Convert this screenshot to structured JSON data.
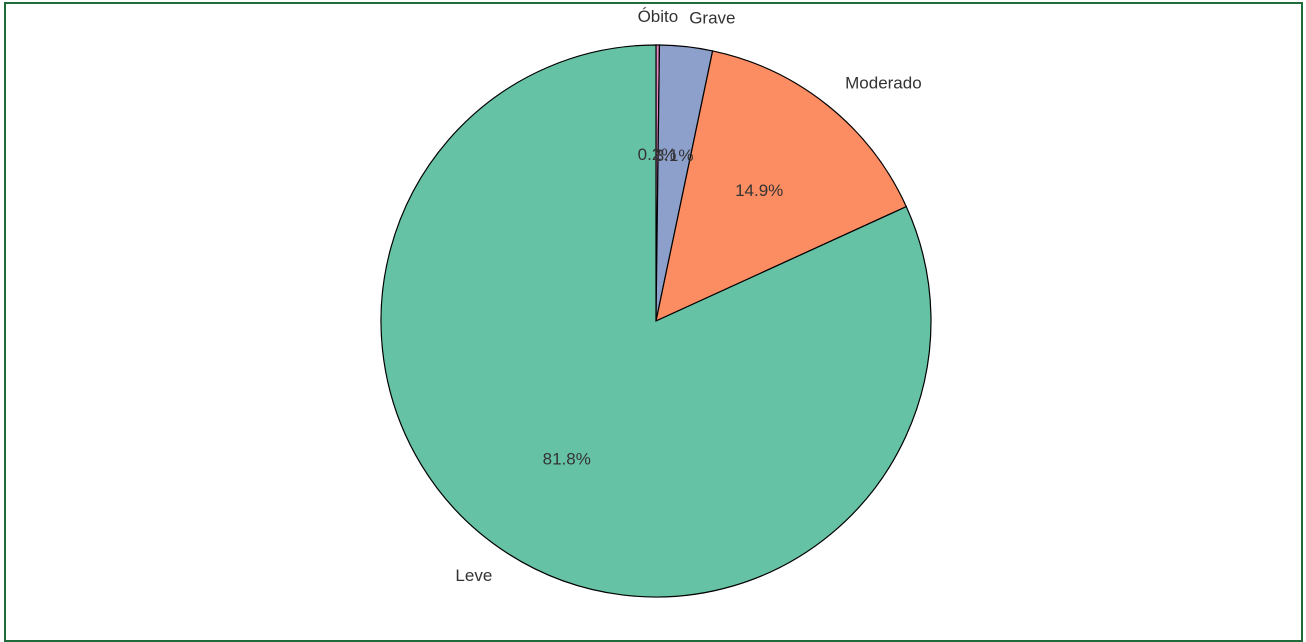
{
  "chart_data": {
    "type": "pie",
    "title": "",
    "start_angle_deg": 90,
    "direction": "clockwise",
    "slices": [
      {
        "label": "Óbito",
        "value": 0.2,
        "pct_label": "0.2%",
        "color": "#e78ac3"
      },
      {
        "label": "Grave",
        "value": 3.1,
        "pct_label": "3.1%",
        "color": "#8da0cb"
      },
      {
        "label": "Moderado",
        "value": 14.9,
        "pct_label": "14.9%",
        "color": "#fc8d62"
      },
      {
        "label": "Leve",
        "value": 81.8,
        "pct_label": "81.8%",
        "color": "#66c2a5"
      }
    ],
    "edge_color": "#000000"
  },
  "colors": {
    "frame_border": "#1f6b3a",
    "text": "#333333"
  }
}
